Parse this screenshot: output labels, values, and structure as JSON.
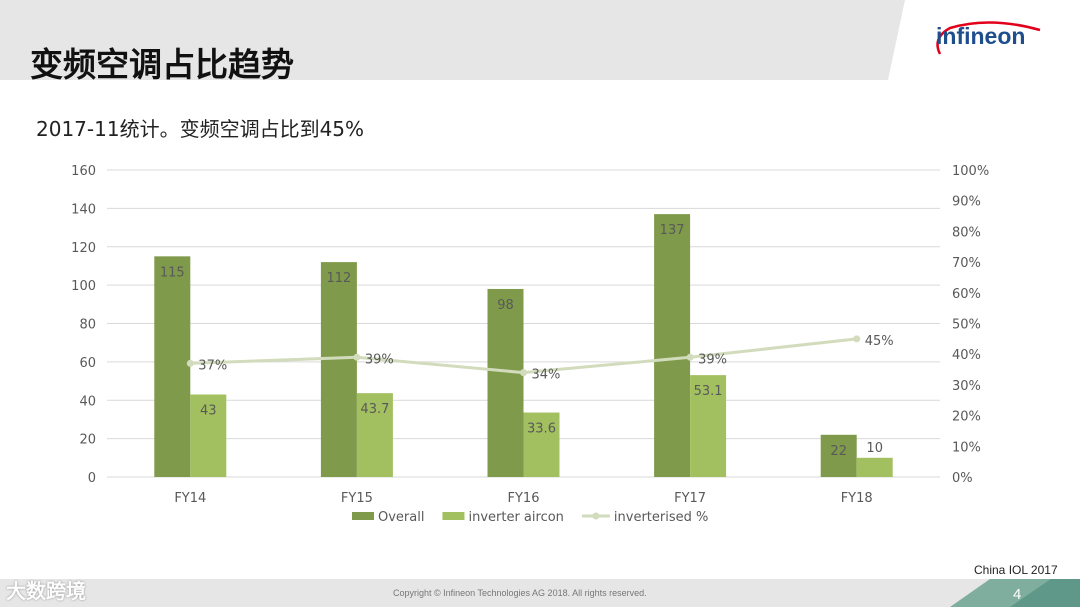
{
  "header": {
    "title": "变频空调占比趋势",
    "logo_text": "infineon",
    "brand_color": "#1f4e8c",
    "accent_color": "#e2001a"
  },
  "subtitle": "2017-11统计。变频空调占比到45%",
  "chart_data": {
    "type": "bar",
    "categories": [
      "FY14",
      "FY15",
      "FY16",
      "FY17",
      "FY18"
    ],
    "series": [
      {
        "name": "Overall",
        "kind": "bar",
        "color": "#7f9a4b",
        "values": [
          115,
          112,
          98,
          137,
          22
        ],
        "labels": [
          "115",
          "112",
          "98",
          "137",
          "22"
        ]
      },
      {
        "name": "inverter aircon",
        "kind": "bar",
        "color": "#a3c060",
        "values": [
          43,
          43.7,
          33.6,
          53.1,
          10
        ],
        "labels": [
          "43",
          "43.7",
          "33.6",
          "53.1",
          "10"
        ]
      },
      {
        "name": "inverterised %",
        "kind": "line",
        "axis": "right",
        "color": "#d2dcbc",
        "values": [
          37,
          39,
          34,
          39,
          45
        ],
        "labels": [
          "37%",
          "39%",
          "34%",
          "39%",
          "45%"
        ]
      }
    ],
    "ylim": [
      0,
      160
    ],
    "yticks": [
      "0",
      "20",
      "40",
      "60",
      "80",
      "100",
      "120",
      "140",
      "160"
    ],
    "y2lim": [
      0,
      100
    ],
    "y2ticks": [
      "0%",
      "10%",
      "20%",
      "30%",
      "40%",
      "50%",
      "60%",
      "70%",
      "80%",
      "90%",
      "100%"
    ],
    "grid": true,
    "legend_position": "bottom"
  },
  "footer": {
    "source": "China IOL 2017",
    "copyright": "Copyright © Infineon Technologies AG 2018. All rights reserved.",
    "page_number": "4",
    "watermark": "大数跨境"
  }
}
